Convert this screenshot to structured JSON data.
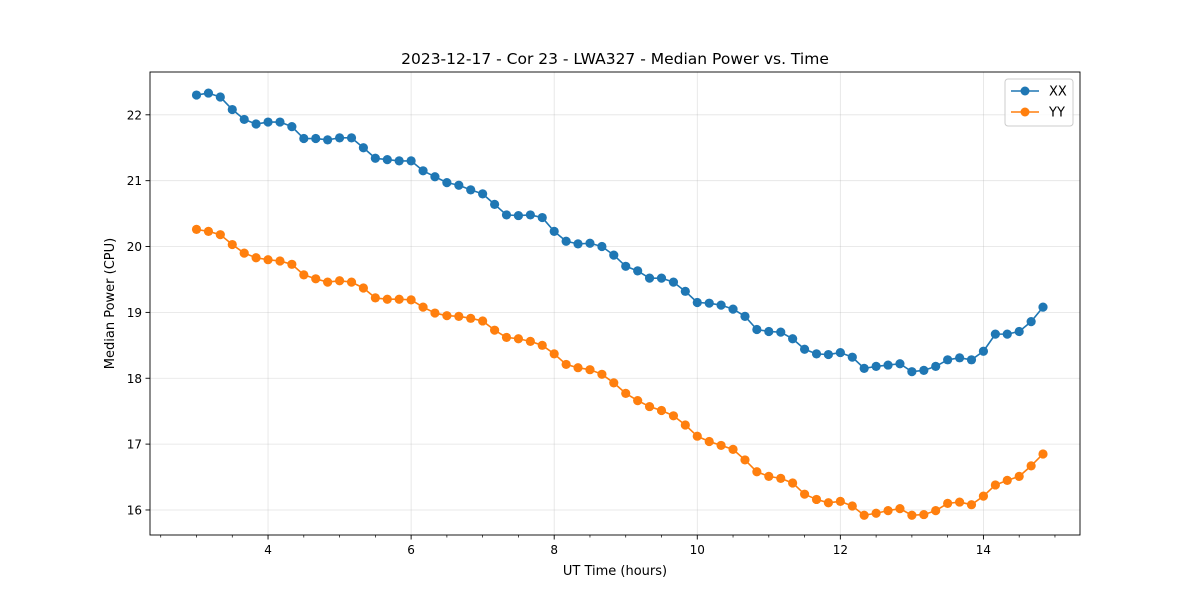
{
  "chart_data": {
    "type": "line",
    "title": "2023-12-17 - Cor 23 - LWA327 - Median Power vs. Time",
    "xlabel": "UT Time (hours)",
    "ylabel": "Median Power (CPU)",
    "xlim": [
      2.35,
      15.35
    ],
    "ylim": [
      15.62,
      22.65
    ],
    "xticks": [
      4,
      6,
      8,
      10,
      12,
      14
    ],
    "xtick_labels": [
      "4",
      "6",
      "8",
      "10",
      "12",
      "14"
    ],
    "yticks": [
      16,
      17,
      18,
      19,
      20,
      21,
      22
    ],
    "ytick_labels": [
      "16",
      "17",
      "18",
      "19",
      "20",
      "21",
      "22"
    ],
    "grid": true,
    "legend_position": "top-right",
    "x": [
      3.0,
      3.167,
      3.333,
      3.5,
      3.667,
      3.833,
      4.0,
      4.167,
      4.333,
      4.5,
      4.667,
      4.833,
      5.0,
      5.167,
      5.333,
      5.5,
      5.667,
      5.833,
      6.0,
      6.167,
      6.333,
      6.5,
      6.667,
      6.833,
      7.0,
      7.167,
      7.333,
      7.5,
      7.667,
      7.833,
      8.0,
      8.167,
      8.333,
      8.5,
      8.667,
      8.833,
      9.0,
      9.167,
      9.333,
      9.5,
      9.667,
      9.833,
      10.0,
      10.167,
      10.333,
      10.5,
      10.667,
      10.833,
      11.0,
      11.167,
      11.333,
      11.5,
      11.667,
      11.833,
      12.0,
      12.167,
      12.333,
      12.5,
      12.667,
      12.833,
      13.0,
      13.167,
      13.333,
      13.5,
      13.667,
      13.833,
      14.0,
      14.167,
      14.333,
      14.5,
      14.667,
      14.833
    ],
    "series": [
      {
        "name": "XX",
        "color": "#1f77b4",
        "values": [
          22.3,
          22.33,
          22.27,
          22.08,
          21.93,
          21.86,
          21.89,
          21.89,
          21.82,
          21.64,
          21.64,
          21.62,
          21.65,
          21.65,
          21.5,
          21.34,
          21.32,
          21.3,
          21.3,
          21.15,
          21.06,
          20.97,
          20.93,
          20.86,
          20.8,
          20.64,
          20.48,
          20.47,
          20.48,
          20.44,
          20.23,
          20.08,
          20.04,
          20.05,
          20.0,
          19.87,
          19.7,
          19.63,
          19.52,
          19.52,
          19.46,
          19.32,
          19.15,
          19.14,
          19.11,
          19.05,
          18.94,
          18.74,
          18.71,
          18.7,
          18.6,
          18.44,
          18.37,
          18.36,
          18.39,
          18.32,
          18.15,
          18.18,
          18.2,
          18.22,
          18.1,
          18.12,
          18.18,
          18.28,
          18.31,
          18.28,
          18.41,
          18.67,
          18.67,
          18.71,
          18.86,
          19.08
        ]
      },
      {
        "name": "YY",
        "color": "#ff7f0e",
        "values": [
          20.26,
          20.23,
          20.18,
          20.03,
          19.9,
          19.83,
          19.8,
          19.78,
          19.73,
          19.57,
          19.51,
          19.46,
          19.48,
          19.46,
          19.37,
          19.22,
          19.2,
          19.2,
          19.19,
          19.08,
          18.99,
          18.95,
          18.94,
          18.91,
          18.87,
          18.73,
          18.62,
          18.6,
          18.56,
          18.5,
          18.37,
          18.21,
          18.16,
          18.13,
          18.06,
          17.93,
          17.77,
          17.66,
          17.57,
          17.51,
          17.43,
          17.29,
          17.12,
          17.04,
          16.98,
          16.92,
          16.76,
          16.58,
          16.51,
          16.48,
          16.41,
          16.24,
          16.16,
          16.11,
          16.13,
          16.06,
          15.92,
          15.95,
          15.99,
          16.02,
          15.92,
          15.93,
          15.99,
          16.1,
          16.12,
          16.08,
          16.21,
          16.38,
          16.45,
          16.51,
          16.67,
          16.85
        ]
      }
    ]
  }
}
